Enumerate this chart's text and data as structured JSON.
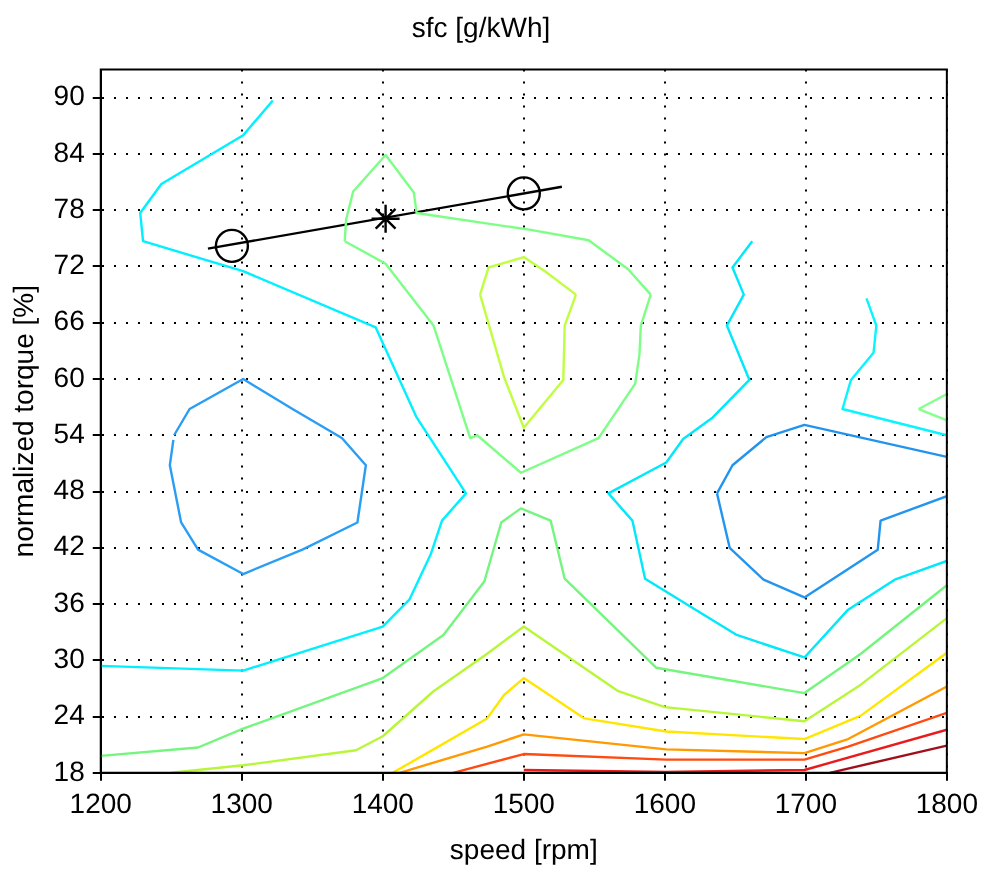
{
  "chart_data": {
    "type": "line",
    "title": "sfc [g/kWh]",
    "xlabel": "speed [rpm]",
    "ylabel": "normalized torque [%]",
    "xlim": [
      1200,
      1800
    ],
    "xticks": [
      1200,
      1300,
      1400,
      1500,
      1600,
      1700,
      1800
    ],
    "ylim": [
      18,
      93
    ],
    "yticks": [
      18,
      24,
      30,
      36,
      42,
      48,
      54,
      60,
      66,
      72,
      78,
      84,
      90
    ],
    "grid": true,
    "legend": false,
    "series": [
      {
        "type": "line",
        "color": "#00f0ff",
        "x": [
          1322,
          1301,
          1243,
          1228,
          1230,
          1301,
          1395,
          1424,
          1459,
          1442,
          1434,
          1419,
          1400,
          1301,
          1200
        ],
        "values": [
          89.7,
          86,
          80.8,
          77.7,
          74.7,
          71.5,
          65.5,
          55.9,
          47.8,
          44.9,
          41.3,
          36.5,
          33.6,
          28.9,
          29.4
        ]
      },
      {
        "type": "line",
        "color": "#00e8fa",
        "x": [
          1662,
          1648,
          1656,
          1644,
          1660,
          1634,
          1613,
          1601,
          1560,
          1577,
          1586,
          1651,
          1699,
          1730,
          1763,
          1800
        ],
        "values": [
          74.7,
          71.9,
          69,
          65.7,
          59.9,
          55.9,
          53.6,
          51.1,
          47.8,
          44.9,
          38.7,
          32.7,
          30.3,
          35.4,
          38.6,
          40.6
        ]
      },
      {
        "type": "line",
        "color": "#08f4ff",
        "x": [
          1743,
          1750,
          1748,
          1732,
          1726,
          1800
        ],
        "values": [
          68.6,
          65.7,
          62.8,
          59.9,
          56.8,
          54.0
        ]
      },
      {
        "type": "line",
        "color": "#2a9df4",
        "x": [
          1252,
          1263,
          1301,
          1336,
          1371,
          1388,
          1382,
          1343,
          1301,
          1269,
          1257,
          1249,
          1251.5
        ],
        "values": [
          54,
          56.8,
          60,
          56.8,
          53.7,
          50.8,
          44.7,
          41.8,
          39.2,
          41.8,
          44.7,
          50.8,
          53.5
        ]
      },
      {
        "type": "line",
        "color": "#2294ee",
        "x": [
          1800,
          1699,
          1672,
          1648,
          1637
        ],
        "values": [
          51.7,
          55.1,
          53.8,
          50.8,
          47.8
        ]
      },
      {
        "type": "line",
        "color": "#2395ef",
        "x": [
          1637,
          1646,
          1670,
          1699,
          1751,
          1753,
          1800
        ],
        "values": [
          47.8,
          42,
          38.6,
          36.7,
          41.8,
          44.9,
          47.5
        ]
      },
      {
        "type": "line",
        "color": "#7dff86",
        "x": [
          1373,
          1374,
          1379,
          1402,
          1422,
          1424,
          1505,
          1546,
          1574,
          1590
        ],
        "values": [
          74.7,
          77,
          80,
          83.9,
          79.9,
          77.7,
          75.9,
          74.8,
          71.7,
          69
        ]
      },
      {
        "type": "line",
        "color": "#7efe87",
        "x": [
          1590,
          1583,
          1582,
          1579,
          1553,
          1498,
          1467,
          1462,
          1436,
          1402,
          1373
        ],
        "values": [
          69,
          65.7,
          62.6,
          59.5,
          53.7,
          50,
          54,
          53.7,
          65.7,
          72.3,
          74.7
        ]
      },
      {
        "type": "line",
        "color": "#74f57e",
        "x": [
          1200,
          1269,
          1301,
          1400,
          1443,
          1472,
          1484,
          1498,
          1519,
          1529,
          1594,
          1699,
          1739,
          1800
        ],
        "values": [
          19.8,
          20.7,
          22.7,
          28.1,
          32.7,
          38.4,
          44.7,
          46.2,
          44.9,
          38.7,
          29.2,
          26.5,
          30.7,
          38
        ]
      },
      {
        "type": "line",
        "color": "#86ff8e",
        "x": [
          1780,
          1800
        ],
        "values": [
          56.8,
          58.4
        ]
      },
      {
        "type": "line",
        "color": "#87fe8f",
        "x": [
          1780,
          1800
        ],
        "values": [
          56.8,
          55.6
        ]
      },
      {
        "type": "line",
        "color": "#c0ff40",
        "x": [
          1469,
          1475,
          1500,
          1515,
          1537
        ],
        "values": [
          69,
          71.9,
          73,
          71.5,
          69
        ]
      },
      {
        "type": "line",
        "color": "#c1fe41",
        "x": [
          1537,
          1529,
          1528,
          1500,
          1486,
          1469
        ],
        "values": [
          69,
          65.7,
          59.9,
          54.8,
          60.2,
          69
        ]
      },
      {
        "type": "line",
        "color": "#b8f738",
        "x": [
          1250,
          1301,
          1381,
          1400,
          1436,
          1474,
          1500,
          1567,
          1600,
          1699,
          1739,
          1800
        ],
        "values": [
          18,
          18.8,
          20.4,
          21.9,
          26.7,
          30.7,
          33.6,
          26.7,
          25,
          23.5,
          27.4,
          34.5
        ]
      },
      {
        "type": "line",
        "color": "#ffe600",
        "x": [
          1407,
          1436,
          1474,
          1486,
          1500,
          1543,
          1601,
          1699,
          1739,
          1800
        ],
        "values": [
          18,
          20.5,
          23.8,
          26.3,
          28.1,
          23.8,
          22.4,
          21.6,
          24.1,
          30.8
        ]
      },
      {
        "type": "line",
        "color": "#ff9a00",
        "x": [
          1412,
          1474,
          1500,
          1601,
          1699,
          1730,
          1800
        ],
        "values": [
          18,
          20.8,
          22.1,
          20.5,
          20.1,
          21.6,
          27.2
        ]
      },
      {
        "type": "line",
        "color": "#ff4a10",
        "x": [
          1450,
          1500,
          1601,
          1699,
          1730,
          1800
        ],
        "values": [
          18,
          20,
          19.4,
          19.4,
          20.8,
          24.4
        ]
      },
      {
        "type": "line",
        "color": "#e81c1c",
        "x": [
          1500,
          1601,
          1699,
          1800
        ],
        "values": [
          18.3,
          18.1,
          18.3,
          22.6
        ]
      },
      {
        "type": "line",
        "color": "#a0101a",
        "x": [
          1717,
          1800
        ],
        "values": [
          18,
          20.9
        ]
      },
      {
        "type": "line",
        "color": "#000000",
        "x": [
          1276,
          1527
        ],
        "values": [
          73.9,
          80.5
        ]
      },
      {
        "type": "scatter",
        "marker": "circle",
        "color": "#000000",
        "x": [
          1293,
          1500
        ],
        "values": [
          74.2,
          79.8
        ]
      },
      {
        "type": "scatter",
        "marker": "cross",
        "color": "#000000",
        "x": [
          1402
        ],
        "values": [
          77.1
        ]
      }
    ]
  }
}
